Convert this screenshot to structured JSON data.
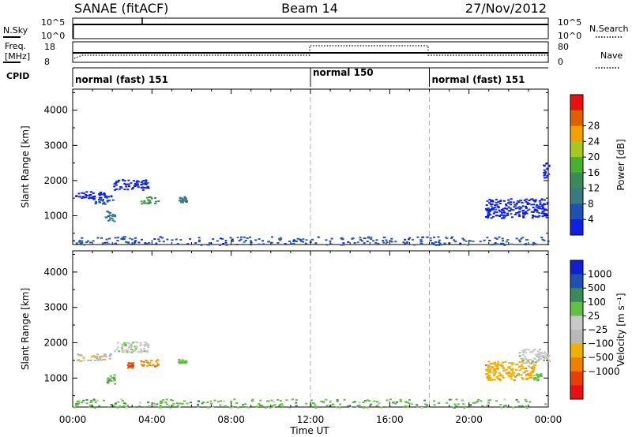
{
  "header": {
    "station": "SANAE (fitACF)",
    "beam": "Beam 14",
    "date": "27/Nov/2012"
  },
  "aux_panels": {
    "nsky_label": "N.Sky",
    "nsky_ticks": [
      "10^5",
      "10^0"
    ],
    "nsearch_label": "N.Search",
    "nsearch_ticks": [
      "10^5",
      "10^0"
    ],
    "freq_label_1": "Freq.",
    "freq_label_2": "[MHz]",
    "freq_ticks": [
      "18",
      "8"
    ],
    "nave_label": "Nave",
    "nave_ticks": [
      "80",
      "0"
    ],
    "cpid_label": "CPID",
    "cpid_segments": [
      {
        "label": "normal (fast) 151",
        "start_h": 0,
        "end_h": 12
      },
      {
        "label": "normal 150",
        "start_h": 12,
        "end_h": 18
      },
      {
        "label": "normal (fast) 151",
        "start_h": 18,
        "end_h": 24
      }
    ]
  },
  "colors": {
    "power_scale": [
      "#1020e0",
      "#2050b0",
      "#3a7a80",
      "#3c8a5a",
      "#48b030",
      "#a8c820",
      "#f0a000",
      "#e06000",
      "#e81010"
    ],
    "velocity_scale": [
      "#1020d0",
      "#2050b0",
      "#3c8a5a",
      "#60c040",
      "#c8c8c8",
      "#b8b8b8",
      "#f0b000",
      "#f08000",
      "#e84000",
      "#e81010"
    ],
    "dashed_line": "#b0b0b0"
  },
  "chart_data": [
    {
      "type": "heatmap",
      "panel": "power",
      "xlabel": "",
      "ylabel": "Slant Range [km]",
      "xlim": [
        0,
        24
      ],
      "ylim": [
        180,
        4600
      ],
      "yticks": [
        "1000",
        "2000",
        "3000",
        "4000"
      ],
      "colorbar_label": "Power [dB]",
      "colorbar_ticks": [
        "4",
        "8",
        "12",
        "16",
        "20",
        "24",
        "28"
      ],
      "features": [
        {
          "x0": 0.1,
          "x1": 1.9,
          "y0": 1500,
          "y1": 1700,
          "level": 0
        },
        {
          "x0": 1.0,
          "x1": 2.0,
          "y0": 1350,
          "y1": 1500,
          "level": 1
        },
        {
          "x0": 2.0,
          "x1": 3.8,
          "y0": 1750,
          "y1": 2050,
          "level": 0
        },
        {
          "x0": 1.6,
          "x1": 2.1,
          "y0": 850,
          "y1": 1150,
          "level": 2
        },
        {
          "x0": 3.4,
          "x1": 4.3,
          "y0": 1350,
          "y1": 1550,
          "level": 3
        },
        {
          "x0": 5.3,
          "x1": 5.7,
          "y0": 1400,
          "y1": 1560,
          "level": 2
        },
        {
          "x0": 20.8,
          "x1": 24.0,
          "y0": 950,
          "y1": 1500,
          "level": 0
        },
        {
          "x0": 23.7,
          "x1": 24.0,
          "y0": 2100,
          "y1": 2500,
          "level": 0
        },
        {
          "x0": 0.0,
          "x1": 24.0,
          "y0": 180,
          "y1": 420,
          "level": 1
        }
      ]
    },
    {
      "type": "heatmap",
      "panel": "velocity",
      "xlabel": "Time UT",
      "ylabel": "Slant Range [km]",
      "xlim": [
        0,
        24
      ],
      "ylim": [
        180,
        4600
      ],
      "xticks": [
        "00:00",
        "04:00",
        "08:00",
        "12:00",
        "16:00",
        "20:00",
        "00:00"
      ],
      "yticks": [
        "1000",
        "2000",
        "3000",
        "4000"
      ],
      "colorbar_label": "Velocity [m s⁻¹]",
      "colorbar_ticks": [
        "1000",
        "500",
        "100",
        "25",
        "−25",
        "−100",
        "−500",
        "−1000"
      ],
      "features": [
        {
          "x0": 0.1,
          "x1": 1.9,
          "y0": 1500,
          "y1": 1700,
          "level": 5
        },
        {
          "x0": 2.0,
          "x1": 3.8,
          "y0": 1750,
          "y1": 2050,
          "level": 4
        },
        {
          "x0": 1.6,
          "x1": 2.1,
          "y0": 850,
          "y1": 1150,
          "level": 3
        },
        {
          "x0": 3.4,
          "x1": 4.3,
          "y0": 1350,
          "y1": 1550,
          "level": 7
        },
        {
          "x0": 2.7,
          "x1": 3.0,
          "y0": 1300,
          "y1": 1450,
          "level": 8
        },
        {
          "x0": 5.3,
          "x1": 5.7,
          "y0": 1400,
          "y1": 1560,
          "level": 3
        },
        {
          "x0": 20.8,
          "x1": 23.3,
          "y0": 950,
          "y1": 1500,
          "level": 6
        },
        {
          "x0": 22.5,
          "x1": 24.0,
          "y0": 1450,
          "y1": 1850,
          "level": 4
        },
        {
          "x0": 23.2,
          "x1": 23.6,
          "y0": 950,
          "y1": 1150,
          "level": 3
        },
        {
          "x0": 0.0,
          "x1": 24.0,
          "y0": 180,
          "y1": 420,
          "level": 3
        }
      ]
    }
  ]
}
